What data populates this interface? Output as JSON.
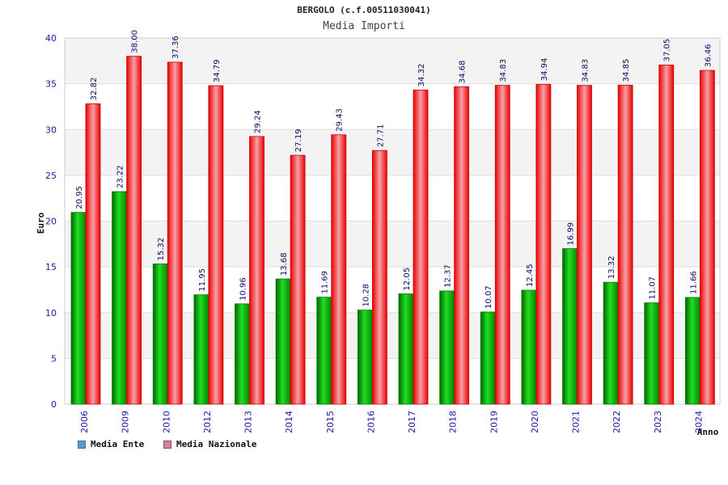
{
  "chart_data": {
    "type": "bar",
    "title": "BERGOLO (c.f.00511030041)",
    "subtitle": "Media Importi",
    "xlabel": "Anno",
    "ylabel": "Euro",
    "ylim": [
      0,
      40
    ],
    "yticks": [
      0,
      5,
      10,
      15,
      20,
      25,
      30,
      35,
      40
    ],
    "categories": [
      "2006",
      "2009",
      "2010",
      "2012",
      "2013",
      "2014",
      "2015",
      "2016",
      "2017",
      "2018",
      "2019",
      "2020",
      "2021",
      "2022",
      "2023",
      "2024"
    ],
    "series": [
      {
        "name": "Media Ente",
        "color": "#00aa00",
        "values": [
          20.95,
          23.22,
          15.32,
          11.95,
          10.96,
          13.68,
          11.69,
          10.28,
          12.05,
          12.37,
          10.07,
          12.45,
          16.99,
          13.32,
          11.07,
          11.66
        ],
        "labels": [
          "20.95",
          "23.22",
          "15.32",
          "11.95",
          "10.96",
          "13.68",
          "11.69",
          "10.28",
          "12.05",
          "12.37",
          "10.07",
          "12.45",
          "16.99",
          "13.32",
          "11.07",
          "11.66"
        ]
      },
      {
        "name": "Media Nazionale",
        "color": "#ee1111",
        "values": [
          32.82,
          38.0,
          37.36,
          34.79,
          29.24,
          27.19,
          29.43,
          27.71,
          34.32,
          34.68,
          34.83,
          34.94,
          34.83,
          34.85,
          37.05,
          36.46
        ],
        "labels": [
          "32.82",
          "38.00",
          "37.36",
          "34.79",
          "29.24",
          "27.19",
          "29.43",
          "27.71",
          "34.32",
          "34.68",
          "34.83",
          "34.94",
          "34.83",
          "34.85",
          "37.05",
          "36.46"
        ]
      }
    ],
    "legend": [
      {
        "label": "Media Ente",
        "color": "#5b9bd5"
      },
      {
        "label": "Media Nazionale",
        "color": "#e07aa0"
      }
    ],
    "legend_position": "bottom-left",
    "grid": true
  }
}
